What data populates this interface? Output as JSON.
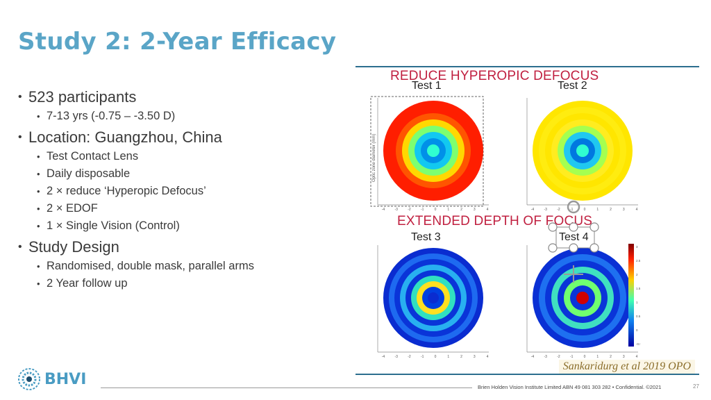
{
  "slide": {
    "title": "Study 2: 2-Year Efficacy",
    "bullets": [
      {
        "text": "523 participants",
        "sub": [
          "7-13 yrs  (-0.75 – -3.50 D)"
        ]
      },
      {
        "text": "Location: Guangzhou, China",
        "sub": [
          "Test Contact Lens",
          "Daily disposable",
          "2 × reduce ‘Hyperopic Defocus’",
          "2 × EDOF",
          "1 × Single Vision (Control)"
        ]
      },
      {
        "text": "Study Design",
        "sub": [
          "Randomised, double mask, parallel arms",
          "2 Year follow up"
        ]
      }
    ]
  },
  "figure": {
    "top_heading": "REDUCE HYPEROPIC DEFOCUS",
    "bottom_heading": "EXTENDED DEPTH OF FOCUS",
    "panels": [
      {
        "label": "Test 1",
        "ylabel": "Optic zone diameter (mm)",
        "rings": [
          "#FF1E00",
          "#FF1E00",
          "#FF5500",
          "#FFD800",
          "#7DFF70",
          "#12C8F0",
          "#0090E8",
          "#30FFD0"
        ]
      },
      {
        "label": "Test 2",
        "ylabel": "",
        "rings": [
          "#FFE600",
          "#FFEC10",
          "#FFE600",
          "#FFEC20",
          "#A5FF50",
          "#20C8F0",
          "#0078E0",
          "#30FFD0"
        ]
      },
      {
        "label": "Test 3",
        "ylabel": "",
        "rings": [
          "#0A2CD0",
          "#1E6AF0",
          "#0A34D8",
          "#28B0F0",
          "#0A34D8",
          "#30E0C0",
          "#FFE020",
          "#0040E0",
          "#0A2CD0"
        ]
      },
      {
        "label": "Test 4",
        "ylabel": "",
        "rings": [
          "#0A30D4",
          "#1E70F0",
          "#0A34D8",
          "#40E0C0",
          "#0A34D8",
          "#70FF70",
          "#0A34D8",
          "#D00000"
        ]
      }
    ],
    "axis_ticks": [
      "-4",
      "-3",
      "-2",
      "-1",
      "0",
      "1",
      "2",
      "3",
      "4"
    ],
    "colorbar_ticks": [
      "3",
      "2.5",
      "2",
      "1.5",
      "1",
      "0.5",
      "0",
      "-0.5"
    ],
    "citation": "Sankaridurg et al 2019 OPO"
  },
  "footer": {
    "logo": "BHVI",
    "legal": "Brien Holden Vision Institute Limited ABN 49 081 303 282 • Confidential. ©2021",
    "page": "27"
  },
  "colors": {
    "title": "#5AA5C7",
    "rule": "#2C6E8E",
    "heading_red": "#C02040"
  }
}
